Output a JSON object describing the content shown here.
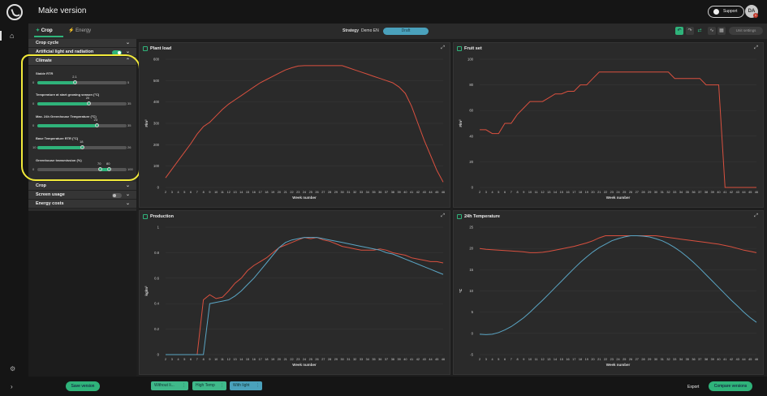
{
  "header": {
    "title": "Make version",
    "support_label": "Support",
    "avatar_initials": "DA",
    "notification_count": "1"
  },
  "tabs": [
    {
      "label": "Crop"
    },
    {
      "label": "Energy"
    }
  ],
  "strategy": {
    "label": "Strategy",
    "value": "Demo EN",
    "status": "Draft"
  },
  "toolbar": {
    "unit_settings_label": "Unit settings"
  },
  "sidebar": {
    "sections": {
      "crop_cycle": "Crop cycle",
      "artificial_light": "Artificial light and radiation",
      "climate": "Climate",
      "crop": "Crop",
      "screen_usage": "Screen usage",
      "energy_costs": "Energy costs"
    },
    "sliders": [
      {
        "label": "Stable RTR",
        "min": "0",
        "max": "5",
        "value": "2.1",
        "fraction": 0.42
      },
      {
        "label": "Temperature at start growing season (°C)",
        "min": "0",
        "max": "35",
        "value": "20",
        "fraction": 0.57
      },
      {
        "label": "Max. 24h Greenhouse Temperature (°C)",
        "min": "0",
        "max": "35",
        "value": "23",
        "fraction": 0.66
      },
      {
        "label": "Base Temperature RTR (°C)",
        "min": "10",
        "max": "26",
        "value": "18",
        "fraction": 0.5
      },
      {
        "label": "Greenhouse transmission (%)",
        "min": "0",
        "max": "100",
        "value_low": "70",
        "value_high": "80",
        "fraction_low": 0.7,
        "fraction_high": 0.8
      }
    ]
  },
  "footer": {
    "save_label": "Save version",
    "scenarios": [
      {
        "label": "Without li...",
        "color": "#3fb98a"
      },
      {
        "label": "High Temp",
        "color": "#3fb98a"
      },
      {
        "label": "With light",
        "color": "#4aa1bc"
      }
    ],
    "export_label": "Export",
    "compare_label": "Compare versions"
  },
  "colors": {
    "accent": "#2fb37a",
    "series_red": "#d9503f",
    "series_blue": "#5aa5c4",
    "highlight": "#f2ea3a"
  },
  "chart_data": [
    {
      "type": "line",
      "title": "Plant load",
      "xlabel": "Week number",
      "ylabel": "#/m²",
      "ylim": [
        0,
        600
      ],
      "yticks": [
        0,
        100,
        200,
        300,
        400,
        500,
        600
      ],
      "x": [
        2,
        3,
        4,
        5,
        6,
        7,
        8,
        9,
        10,
        11,
        12,
        13,
        14,
        15,
        16,
        17,
        18,
        19,
        20,
        21,
        22,
        23,
        24,
        25,
        26,
        27,
        28,
        29,
        30,
        31,
        32,
        33,
        34,
        35,
        36,
        37,
        38,
        39,
        40,
        41,
        42,
        43,
        44,
        45,
        46
      ],
      "series": [
        {
          "color": "#d9503f",
          "values": [
            45,
            85,
            125,
            165,
            205,
            250,
            285,
            305,
            335,
            365,
            390,
            410,
            430,
            450,
            470,
            490,
            505,
            520,
            535,
            550,
            560,
            568,
            570,
            570,
            570,
            570,
            570,
            570,
            570,
            560,
            550,
            540,
            530,
            520,
            510,
            500,
            490,
            470,
            440,
            380,
            300,
            220,
            150,
            80,
            25
          ]
        }
      ]
    },
    {
      "type": "line",
      "title": "Fruit set",
      "xlabel": "Week number",
      "ylabel": "#/m²",
      "ylim": [
        0,
        100
      ],
      "yticks": [
        0,
        20,
        40,
        60,
        80,
        100
      ],
      "x": [
        2,
        3,
        4,
        5,
        6,
        7,
        8,
        9,
        10,
        11,
        12,
        13,
        14,
        15,
        16,
        17,
        18,
        19,
        20,
        21,
        22,
        23,
        24,
        25,
        26,
        27,
        28,
        29,
        30,
        31,
        32,
        33,
        34,
        35,
        36,
        37,
        38,
        39,
        40,
        41,
        42,
        43,
        44,
        45,
        46
      ],
      "series": [
        {
          "color": "#d9503f",
          "values": [
            45,
            45,
            42,
            42,
            50,
            50,
            57,
            62,
            67,
            67,
            67,
            70,
            73,
            73,
            75,
            75,
            80,
            80,
            85,
            90,
            90,
            90,
            90,
            90,
            90,
            90,
            90,
            90,
            90,
            90,
            90,
            85,
            85,
            85,
            85,
            85,
            80,
            80,
            80,
            0,
            0,
            0,
            0,
            0,
            0
          ]
        }
      ]
    },
    {
      "type": "line",
      "title": "Production",
      "xlabel": "Week number",
      "ylabel": "kg/m²",
      "ylim": [
        0,
        1
      ],
      "yticks": [
        0,
        0.2,
        0.4,
        0.6,
        0.8,
        1
      ],
      "x": [
        2,
        3,
        4,
        5,
        6,
        7,
        8,
        9,
        10,
        11,
        12,
        13,
        14,
        15,
        16,
        17,
        18,
        19,
        20,
        21,
        22,
        23,
        24,
        25,
        26,
        27,
        28,
        29,
        30,
        31,
        32,
        33,
        34,
        35,
        36,
        37,
        38,
        39,
        40,
        41,
        42,
        43,
        44,
        45,
        46
      ],
      "series": [
        {
          "color": "#d9503f",
          "values": [
            0,
            0,
            0,
            0,
            0,
            0,
            0.43,
            0.47,
            0.44,
            0.45,
            0.5,
            0.56,
            0.6,
            0.66,
            0.7,
            0.73,
            0.76,
            0.8,
            0.84,
            0.86,
            0.88,
            0.9,
            0.92,
            0.91,
            0.92,
            0.9,
            0.89,
            0.87,
            0.85,
            0.84,
            0.83,
            0.82,
            0.82,
            0.82,
            0.83,
            0.82,
            0.8,
            0.79,
            0.78,
            0.76,
            0.75,
            0.74,
            0.73,
            0.73,
            0.72
          ]
        },
        {
          "color": "#5aa5c4",
          "values": [
            0,
            0,
            0,
            0,
            0,
            0,
            0,
            0.4,
            0.41,
            0.42,
            0.43,
            0.46,
            0.5,
            0.55,
            0.6,
            0.66,
            0.72,
            0.78,
            0.84,
            0.88,
            0.9,
            0.91,
            0.92,
            0.92,
            0.92,
            0.91,
            0.9,
            0.89,
            0.88,
            0.87,
            0.86,
            0.85,
            0.84,
            0.83,
            0.82,
            0.8,
            0.79,
            0.77,
            0.75,
            0.73,
            0.71,
            0.69,
            0.67,
            0.65,
            0.63
          ]
        }
      ]
    },
    {
      "type": "line",
      "title": "24h Temperature",
      "xlabel": "Week number",
      "ylabel": "°C",
      "ylim": [
        -5,
        25
      ],
      "yticks": [
        -5,
        0,
        5,
        10,
        15,
        20,
        25
      ],
      "x": [
        2,
        3,
        4,
        5,
        6,
        7,
        8,
        9,
        10,
        11,
        12,
        13,
        14,
        15,
        16,
        17,
        18,
        19,
        20,
        21,
        22,
        23,
        24,
        25,
        26,
        27,
        28,
        29,
        30,
        31,
        32,
        33,
        34,
        35,
        36,
        37,
        38,
        39,
        40,
        41,
        42,
        43,
        44,
        45,
        46
      ],
      "series": [
        {
          "color": "#d9503f",
          "values": [
            20.0,
            19.8,
            19.7,
            19.6,
            19.5,
            19.4,
            19.3,
            19.2,
            19.0,
            19.0,
            19.1,
            19.3,
            19.6,
            19.9,
            20.2,
            20.5,
            20.9,
            21.3,
            21.8,
            22.5,
            23.0,
            23.0,
            23.0,
            23.0,
            23.0,
            23.0,
            23.0,
            23.0,
            23.0,
            22.8,
            22.6,
            22.4,
            22.2,
            22.0,
            21.8,
            21.6,
            21.4,
            21.2,
            21.0,
            20.7,
            20.4,
            20.0,
            19.6,
            19.3,
            19.0
          ]
        },
        {
          "color": "#5aa5c4",
          "values": [
            -0.2,
            -0.3,
            -0.2,
            0.2,
            0.8,
            1.6,
            2.6,
            3.7,
            5.0,
            6.4,
            7.8,
            9.3,
            10.8,
            12.3,
            13.8,
            15.3,
            16.7,
            18.0,
            19.2,
            20.2,
            21.0,
            21.8,
            22.3,
            22.7,
            23.0,
            23.0,
            22.9,
            22.7,
            22.3,
            21.8,
            21.1,
            20.2,
            19.2,
            18.0,
            16.7,
            15.3,
            13.8,
            12.3,
            10.8,
            9.3,
            7.8,
            6.4,
            5.0,
            3.7,
            2.6
          ]
        }
      ]
    }
  ]
}
